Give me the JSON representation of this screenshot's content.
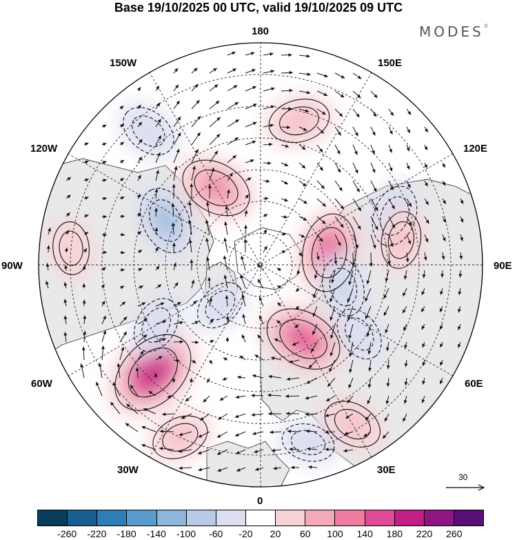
{
  "title": "Base 19/10/2025 00 UTC, valid 19/10/2025 09 UTC",
  "brand": {
    "name": "MODES",
    "mark": "©"
  },
  "longitude_labels": {
    "lon_180": "180",
    "lon_150e": "150E",
    "lon_120e": "120E",
    "lon_90e": "90E",
    "lon_60e": "60E",
    "lon_30e": "30E",
    "lon_0": "0",
    "lon_30w": "30W",
    "lon_60w": "60W",
    "lon_90w": "90W",
    "lon_120w": "120W",
    "lon_150w": "150W"
  },
  "reference_vector": {
    "value": "30"
  },
  "colorbar": {
    "colors": [
      "#0b3d5c",
      "#1a5f8f",
      "#2e7db5",
      "#5a9bcc",
      "#8cb6db",
      "#b9cbe6",
      "#dcdff0",
      "#ffffff",
      "#f8d3d6",
      "#f3a9b6",
      "#ed7ea2",
      "#e04b97",
      "#c01f86",
      "#8f1583",
      "#5a0f74"
    ],
    "ticks": [
      "-260",
      "-220",
      "-180",
      "-140",
      "-100",
      "-60",
      "-20",
      "20",
      "60",
      "100",
      "140",
      "180",
      "220",
      "260"
    ]
  },
  "anomaly_centers": [
    {
      "lon": -45,
      "colat": 48,
      "value": 210
    },
    {
      "lon": 30,
      "colat": 27,
      "value": 160
    },
    {
      "lon": 100,
      "colat": 22,
      "value": 160
    },
    {
      "lon": -150,
      "colat": 28,
      "value": 130
    },
    {
      "lon": 165,
      "colat": 47,
      "value": 80
    },
    {
      "lon": 30,
      "colat": 58,
      "value": 70
    },
    {
      "lon": -25,
      "colat": 60,
      "value": 60
    },
    {
      "lon": -95,
      "colat": 60,
      "value": 40
    },
    {
      "lon": -115,
      "colat": 33,
      "value": -110
    },
    {
      "lon": 110,
      "colat": 45,
      "value": -80
    },
    {
      "lon": -140,
      "colat": 55,
      "value": -60
    },
    {
      "lon": 75,
      "colat": 27,
      "value": -70
    },
    {
      "lon": -60,
      "colat": 38,
      "value": -60
    },
    {
      "lon": -45,
      "colat": 18,
      "value": -40
    },
    {
      "lon": 55,
      "colat": 38,
      "value": -50
    },
    {
      "lon": 15,
      "colat": 58,
      "value": -40
    },
    {
      "lon": 100,
      "colat": 45,
      "value": 60
    }
  ]
}
